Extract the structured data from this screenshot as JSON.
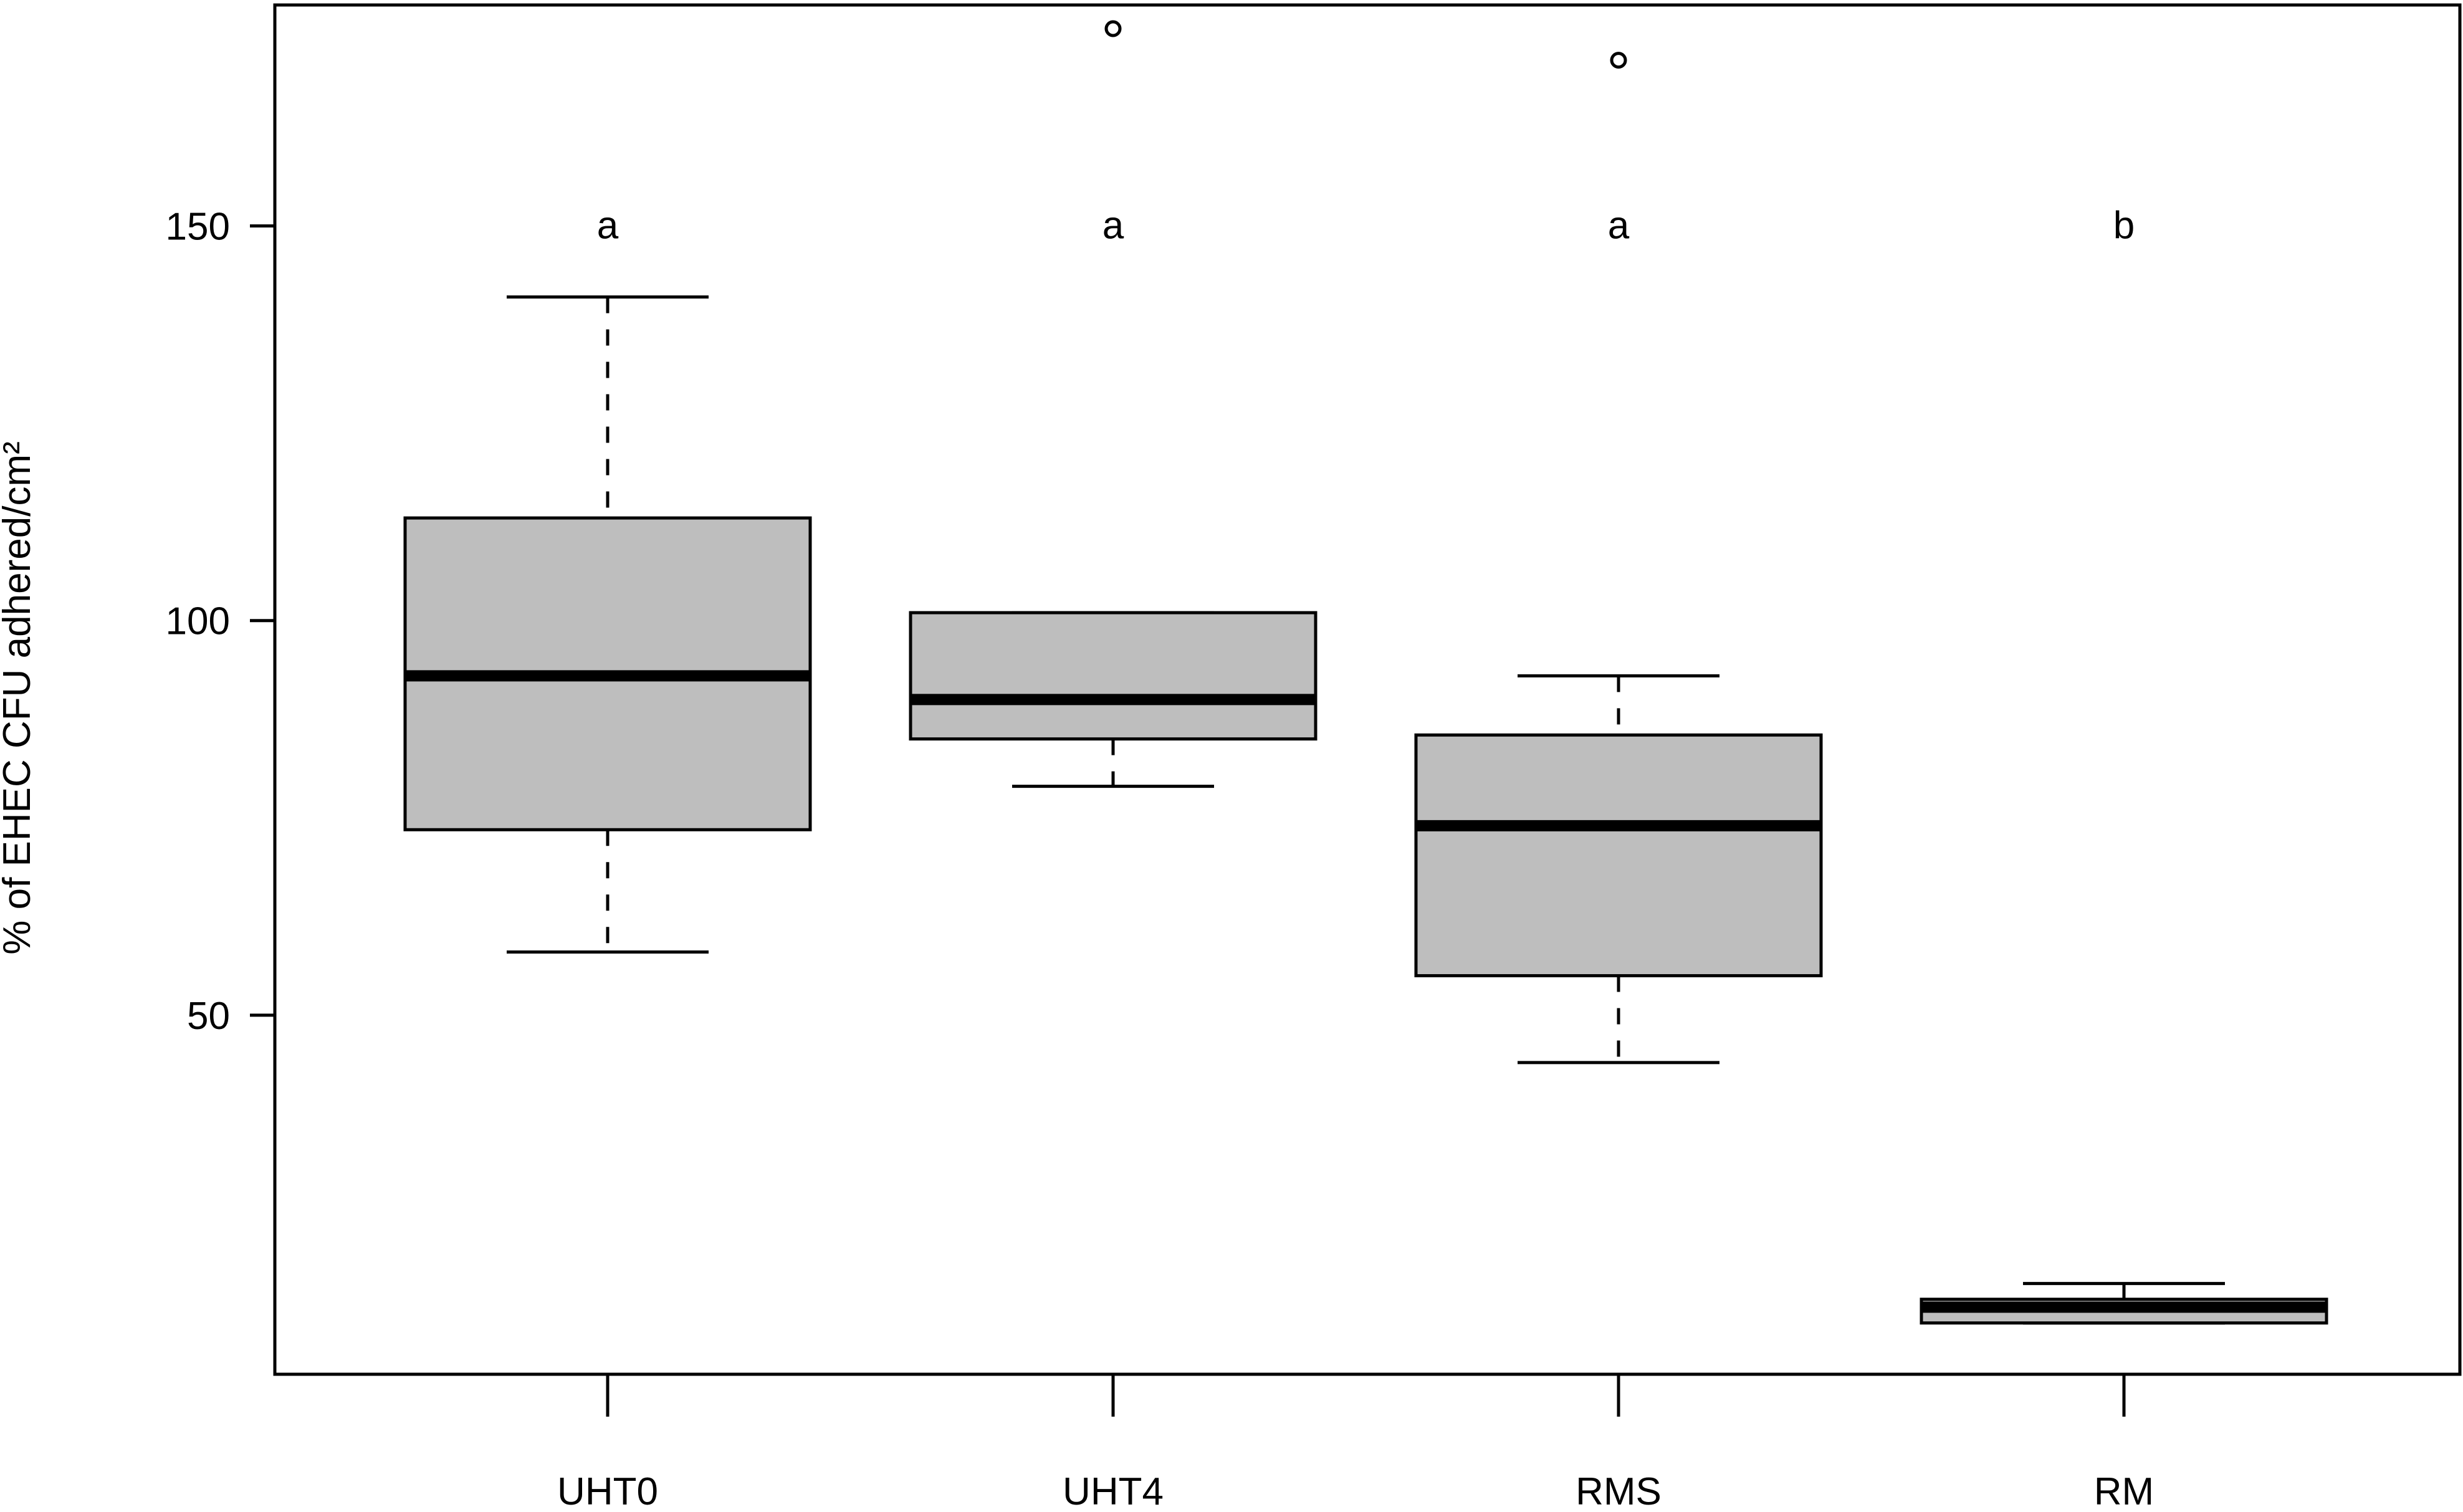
{
  "chart_data": {
    "type": "box",
    "ylabel": "% of EHEC CFU adhered/cm²",
    "xlabel": "",
    "ylim": [
      4.5,
      178
    ],
    "yticks": [
      50,
      100,
      150
    ],
    "yticklabels": [
      "50",
      "100",
      "150"
    ],
    "grid": false,
    "categories": [
      "UHT0",
      "UHT4",
      "RMS",
      "RM"
    ],
    "boxes": [
      {
        "category": "UHT0",
        "whisker_low": 58,
        "q1": 73.5,
        "median": 93,
        "q3": 113,
        "whisker_high": 141,
        "outliers": [],
        "group_letter": "a"
      },
      {
        "category": "UHT4",
        "whisker_low": 79,
        "q1": 85,
        "median": 90,
        "q3": 101,
        "whisker_high": 101,
        "outliers": [
          175
        ],
        "group_letter": "a"
      },
      {
        "category": "RMS",
        "whisker_low": 44,
        "q1": 55,
        "median": 74,
        "q3": 85.5,
        "whisker_high": 93,
        "outliers": [
          171
        ],
        "group_letter": "a"
      },
      {
        "category": "RM",
        "whisker_low": 11,
        "q1": 11,
        "median": 13,
        "q3": 14,
        "whisker_high": 16,
        "outliers": [],
        "group_letter": "b"
      }
    ],
    "group_letter_y": 150,
    "colors": {
      "box_fill": "#bebebe",
      "stroke": "#000000",
      "background": "#ffffff"
    }
  }
}
